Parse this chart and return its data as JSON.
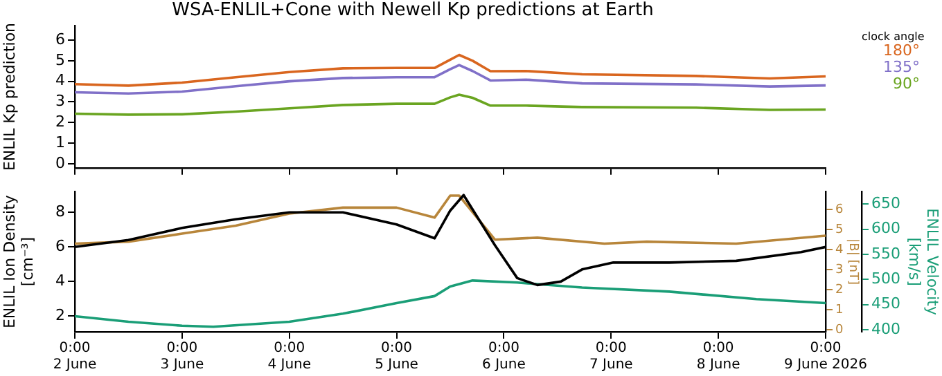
{
  "chart_data": [
    {
      "type": "line",
      "title": "WSA-ENLIL+Cone with Newell Kp predictions at Earth",
      "ylabel": "ENLIL Kp prediction",
      "legend": "right",
      "legend_title": "clock angle",
      "tick_labels": "y",
      "x": [
        "2026-06-02T00:00",
        "2026-06-02T12:00",
        "2026-06-03T00:00",
        "2026-06-03T12:00",
        "2026-06-04T00:00",
        "2026-06-04T12:00",
        "2026-06-05T00:00",
        "2026-06-05T08:30",
        "2026-06-05T12:00",
        "2026-06-05T14:00",
        "2026-06-05T17:00",
        "2026-06-05T21:00",
        "2026-06-06T05:00",
        "2026-06-06T17:30",
        "2026-06-07T19:00",
        "2026-06-08T11:30",
        "2026-06-09T00:00"
      ],
      "series": [
        {
          "name": "180°",
          "color": "#d9661f",
          "values": [
            3.86,
            3.79,
            3.94,
            4.2,
            4.45,
            4.63,
            4.65,
            4.65,
            5.05,
            5.28,
            5.0,
            4.49,
            4.5,
            4.34,
            4.26,
            4.14,
            4.24
          ]
        },
        {
          "name": "135°",
          "color": "#8070c8",
          "values": [
            3.47,
            3.41,
            3.5,
            3.76,
            4.0,
            4.16,
            4.2,
            4.2,
            4.59,
            4.79,
            4.5,
            4.04,
            4.08,
            3.9,
            3.85,
            3.75,
            3.8
          ]
        },
        {
          "name": "90°",
          "color": "#6aa521",
          "values": [
            2.43,
            2.38,
            2.4,
            2.53,
            2.69,
            2.85,
            2.91,
            2.91,
            3.22,
            3.35,
            3.2,
            2.82,
            2.82,
            2.75,
            2.72,
            2.61,
            2.63
          ]
        }
      ],
      "xlim": [
        "2026-06-02T00:00",
        "2026-06-09T00:00"
      ],
      "xticks": [
        {
          "value": "2026-06-02T00:00",
          "label": null
        },
        {
          "value": "2026-06-03T00:00",
          "label": null
        },
        {
          "value": "2026-06-04T00:00",
          "label": null
        },
        {
          "value": "2026-06-05T00:00",
          "label": null
        },
        {
          "value": "2026-06-06T00:00",
          "label": null
        },
        {
          "value": "2026-06-07T00:00",
          "label": null
        },
        {
          "value": "2026-06-08T00:00",
          "label": null
        },
        {
          "value": "2026-06-09T00:00",
          "label": null
        }
      ],
      "ylim": [
        -0.2,
        6.7
      ],
      "yticks": [
        0,
        1,
        2,
        3,
        4,
        5,
        6
      ]
    },
    {
      "type": "line",
      "ylabel": "ENLIL Ion Density\n[cm⁻³]",
      "y2label": "ENLIL Velocity\n[km/s]",
      "y3label": "|B| [nT]",
      "series": [
        {
          "color": "#000000",
          "axis": "y",
          "x": [
            "2026-06-02T00:00",
            "2026-06-02T12:00",
            "2026-06-03T00:00",
            "2026-06-03T12:00",
            "2026-06-04T00:00",
            "2026-06-04T12:00",
            "2026-06-05T00:00",
            "2026-06-05T08:30",
            "2026-06-05T12:00",
            "2026-06-05T15:00",
            "2026-06-05T22:00",
            "2026-06-06T03:00",
            "2026-06-06T07:30",
            "2026-06-06T12:45",
            "2026-06-06T17:30",
            "2026-06-07T00:30",
            "2026-06-07T13:00",
            "2026-06-08T04:00",
            "2026-06-08T18:30",
            "2026-06-09T00:00"
          ],
          "values": [
            6.0,
            6.4,
            7.1,
            7.6,
            8.0,
            8.0,
            7.3,
            6.5,
            8.1,
            9.0,
            6.1,
            4.2,
            3.8,
            4.0,
            4.7,
            5.1,
            5.1,
            5.2,
            5.7,
            6.0
          ]
        },
        {
          "color": "#b8863b",
          "axis": "y3",
          "x": [
            "2026-06-02T00:00",
            "2026-06-02T12:00",
            "2026-06-03T00:00",
            "2026-06-03T12:00",
            "2026-06-04T00:00",
            "2026-06-04T12:00",
            "2026-06-05T00:00",
            "2026-06-05T08:30",
            "2026-06-05T12:00",
            "2026-06-05T14:00",
            "2026-06-05T22:00",
            "2026-06-06T07:30",
            "2026-06-06T22:30",
            "2026-06-07T08:00",
            "2026-06-08T04:00",
            "2026-06-09T00:00"
          ],
          "values": [
            4.3,
            4.4,
            4.8,
            5.2,
            5.8,
            6.1,
            6.1,
            5.6,
            6.7,
            6.7,
            4.5,
            4.6,
            4.3,
            4.4,
            4.3,
            4.7
          ]
        },
        {
          "color": "#1a9e77",
          "axis": "y2",
          "x": [
            "2026-06-02T00:00",
            "2026-06-02T12:00",
            "2026-06-03T00:00",
            "2026-06-03T07:00",
            "2026-06-04T00:00",
            "2026-06-04T12:00",
            "2026-06-05T00:00",
            "2026-06-05T08:30",
            "2026-06-05T12:00",
            "2026-06-05T17:00",
            "2026-06-06T03:00",
            "2026-06-06T17:30",
            "2026-06-07T13:00",
            "2026-06-08T08:30",
            "2026-06-09T00:00"
          ],
          "values": [
            427,
            416,
            408,
            406,
            416,
            432,
            453,
            467,
            486,
            498,
            494,
            484,
            476,
            461,
            453
          ]
        }
      ],
      "xlim": [
        "2026-06-02T00:00",
        "2026-06-09T00:00"
      ],
      "xticks": [
        {
          "value": "2026-06-02T00:00",
          "label": "0:00\n2 June"
        },
        {
          "value": "2026-06-03T00:00",
          "label": "0:00\n3 June"
        },
        {
          "value": "2026-06-04T00:00",
          "label": "0:00\n4 June"
        },
        {
          "value": "2026-06-05T00:00",
          "label": "0:00\n5 June"
        },
        {
          "value": "2026-06-06T00:00",
          "label": "0:00\n6 June"
        },
        {
          "value": "2026-06-07T00:00",
          "label": "0:00\n7 June"
        },
        {
          "value": "2026-06-08T00:00",
          "label": "0:00\n8 June"
        },
        {
          "value": "2026-06-09T00:00",
          "label": "0:00\n9 June 2026"
        }
      ],
      "ylim": [
        1.1,
        9.2
      ],
      "yticks": [
        2,
        4,
        6,
        8
      ],
      "y2lim": [
        396,
        675
      ],
      "y2ticks": [
        400,
        450,
        500,
        550,
        600,
        650
      ],
      "y3lim": [
        -0.1,
        6.9
      ],
      "y3ticks": [
        0,
        1,
        2,
        3,
        4,
        5,
        6
      ]
    }
  ]
}
